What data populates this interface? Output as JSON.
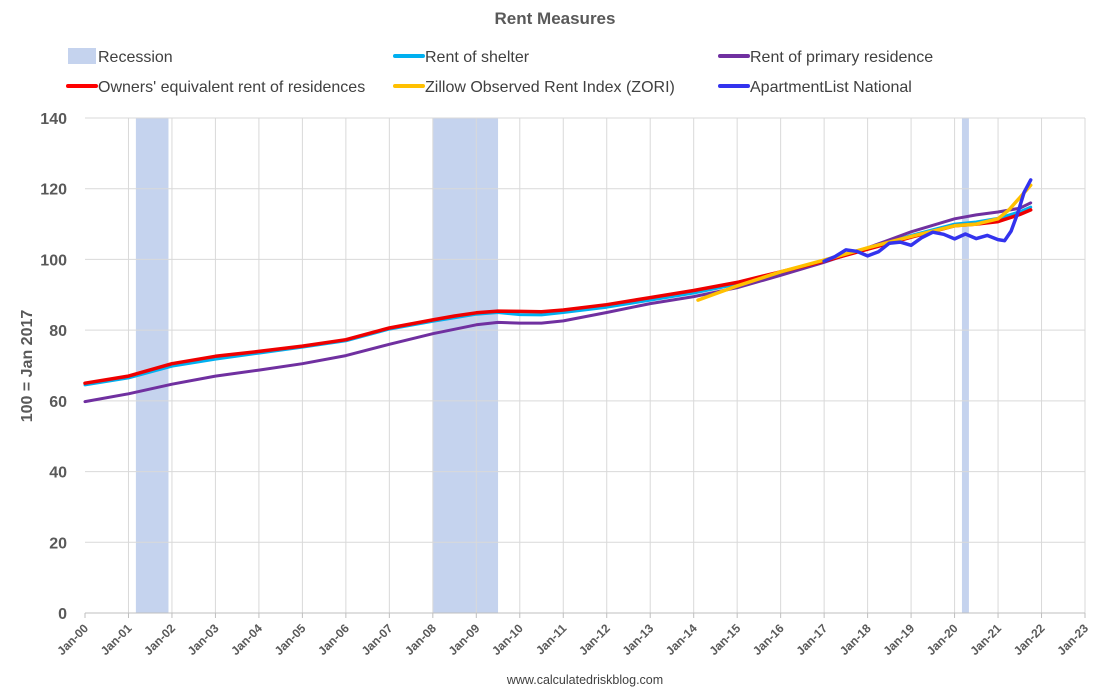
{
  "chart_data": {
    "type": "line",
    "title": "Rent Measures",
    "ylabel": "100 = Jan 2017",
    "xlabel": "",
    "ylim": [
      0,
      140
    ],
    "yticks": [
      0,
      20,
      40,
      60,
      80,
      100,
      120,
      140
    ],
    "xlim": [
      2000,
      2023
    ],
    "xtick_labels": [
      "Jan-00",
      "Jan-01",
      "Jan-02",
      "Jan-03",
      "Jan-04",
      "Jan-05",
      "Jan-06",
      "Jan-07",
      "Jan-08",
      "Jan-09",
      "Jan-10",
      "Jan-11",
      "Jan-12",
      "Jan-13",
      "Jan-14",
      "Jan-15",
      "Jan-16",
      "Jan-17",
      "Jan-18",
      "Jan-19",
      "Jan-20",
      "Jan-21",
      "Jan-22",
      "Jan-23"
    ],
    "grid": true,
    "legend_position": "top",
    "recessions": [
      {
        "start": 2001.17,
        "end": 2001.92
      },
      {
        "start": 2008.0,
        "end": 2009.5
      },
      {
        "start": 2020.17,
        "end": 2020.33
      }
    ],
    "legend": [
      {
        "label": "Recession",
        "kind": "box",
        "color": "#c5d3ee"
      },
      {
        "label": "Rent of shelter",
        "kind": "line",
        "color": "#00b0f0"
      },
      {
        "label": "Rent of primary residence",
        "kind": "line",
        "color": "#7030a0"
      },
      {
        "label": "Owners' equivalent rent of residences",
        "kind": "line",
        "color": "#ff0000"
      },
      {
        "label": "Zillow Observed Rent Index (ZORI)",
        "kind": "line",
        "color": "#ffc000"
      },
      {
        "label": "ApartmentList National",
        "kind": "line",
        "color": "#3333ee"
      }
    ],
    "series": [
      {
        "name": "Rent of shelter",
        "color": "#00b0f0",
        "width": 3,
        "x": [
          2000,
          2001,
          2002,
          2003,
          2004,
          2005,
          2006,
          2007,
          2008,
          2008.5,
          2009,
          2009.5,
          2010,
          2010.5,
          2011,
          2012,
          2013,
          2014,
          2015,
          2016,
          2017,
          2018,
          2019,
          2020,
          2020.5,
          2021,
          2021.5,
          2021.75
        ],
        "y": [
          64.5,
          66.5,
          69.8,
          71.8,
          73.5,
          75.2,
          77,
          80.3,
          82.5,
          83.5,
          84.5,
          85,
          84.4,
          84.3,
          85,
          86.5,
          88.5,
          90.5,
          93,
          96.2,
          99.8,
          103.3,
          106.8,
          110,
          110.6,
          111.6,
          113.5,
          114.8
        ]
      },
      {
        "name": "Rent of primary residence",
        "color": "#7030a0",
        "width": 3,
        "x": [
          2000,
          2001,
          2002,
          2003,
          2004,
          2005,
          2006,
          2007,
          2008,
          2009,
          2009.5,
          2010,
          2010.5,
          2011,
          2012,
          2013,
          2014,
          2015,
          2016,
          2017,
          2018,
          2019,
          2020,
          2020.5,
          2021,
          2021.5,
          2021.75
        ],
        "y": [
          59.8,
          62,
          64.7,
          67,
          68.7,
          70.5,
          72.8,
          76,
          79,
          81.5,
          82.2,
          82,
          82,
          82.6,
          85,
          87.5,
          89.5,
          92,
          95.5,
          99.2,
          103.3,
          107.8,
          111.5,
          112.6,
          113.4,
          114.5,
          116
        ]
      },
      {
        "name": "Owners' equivalent rent of residences",
        "color": "#ee0000",
        "width": 3.5,
        "x": [
          2000,
          2001,
          2002,
          2003,
          2004,
          2005,
          2006,
          2007,
          2008,
          2008.5,
          2009,
          2009.5,
          2010,
          2010.5,
          2011,
          2012,
          2013,
          2014,
          2015,
          2016,
          2017,
          2018,
          2019,
          2020,
          2020.5,
          2021,
          2021.5,
          2021.75
        ],
        "y": [
          65,
          67,
          70.5,
          72.6,
          74,
          75.5,
          77.3,
          80.6,
          82.9,
          84,
          84.9,
          85.4,
          85.3,
          85.2,
          85.7,
          87.2,
          89.2,
          91.2,
          93.5,
          96.5,
          99.5,
          102.9,
          106.3,
          109.5,
          110,
          110.7,
          112.7,
          114
        ]
      },
      {
        "name": "Zillow Observed Rent Index (ZORI)",
        "color": "#ffc000",
        "width": 3.5,
        "x": [
          2014.1,
          2015,
          2016,
          2017,
          2018,
          2019,
          2020,
          2020.5,
          2021,
          2021.25,
          2021.5,
          2021.75
        ],
        "y": [
          88.5,
          92.5,
          96.5,
          99.8,
          103.3,
          106.5,
          109.5,
          110,
          111.5,
          114,
          117.5,
          121
        ]
      },
      {
        "name": "ApartmentList National",
        "color": "#3333ee",
        "width": 3.5,
        "x": [
          2017,
          2017.25,
          2017.5,
          2017.75,
          2018,
          2018.25,
          2018.5,
          2018.75,
          2019,
          2019.25,
          2019.5,
          2019.75,
          2020,
          2020.25,
          2020.5,
          2020.75,
          2021,
          2021.15,
          2021.3,
          2021.45,
          2021.6,
          2021.75
        ],
        "y": [
          99.5,
          100.8,
          102.7,
          102.3,
          101,
          102.2,
          104.6,
          104.9,
          104,
          106.2,
          107.7,
          107.1,
          105.8,
          107.2,
          105.9,
          106.8,
          105.6,
          105.3,
          108,
          113,
          119,
          122.5
        ]
      }
    ]
  },
  "footer": "www.calculatedriskblog.com"
}
